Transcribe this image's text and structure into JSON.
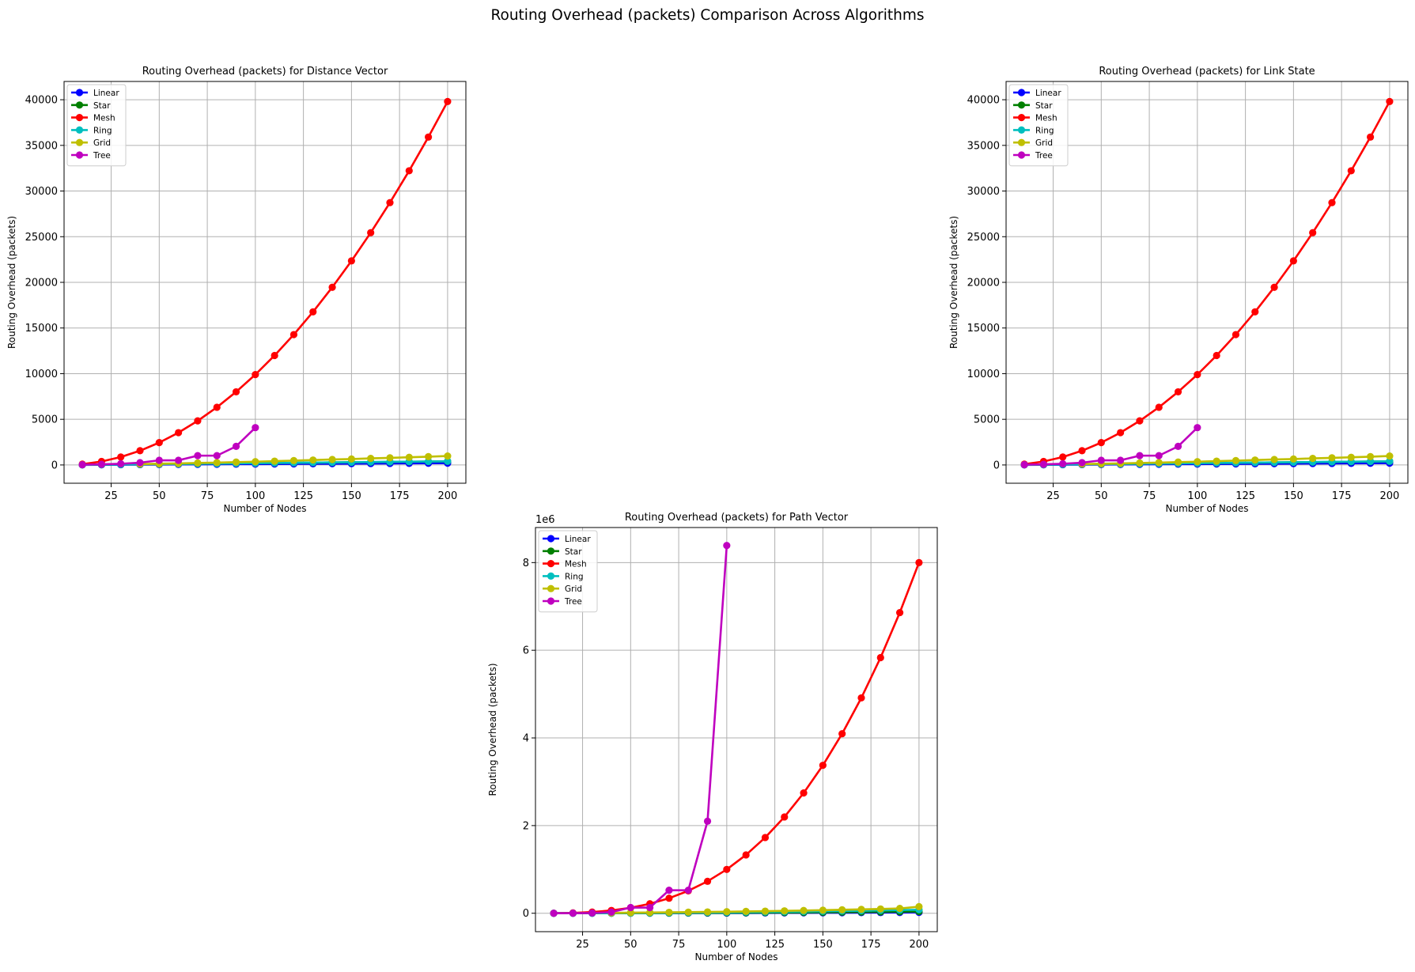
{
  "figure": {
    "suptitle": "Routing Overhead (packets) Comparison Across Algorithms"
  },
  "legend_labels": [
    "Linear",
    "Star",
    "Mesh",
    "Ring",
    "Grid",
    "Tree"
  ],
  "series_colors": {
    "Linear": "#0000ff",
    "Star": "#008000",
    "Mesh": "#ff0000",
    "Ring": "#00bfbf",
    "Grid": "#bfbf00",
    "Tree": "#bf00bf"
  },
  "chart_data": [
    {
      "type": "line",
      "title": "Routing Overhead (packets) for Distance Vector",
      "xlabel": "Number of Nodes",
      "ylabel": "Routing Overhead (packets)",
      "xlim": [
        0.5,
        209.5
      ],
      "ylim": [
        -2000,
        42000
      ],
      "xticks": [
        25,
        50,
        75,
        100,
        125,
        150,
        175,
        200
      ],
      "yticks": [
        0,
        5000,
        10000,
        15000,
        20000,
        25000,
        30000,
        35000,
        40000
      ],
      "offset_text": "",
      "grid": true,
      "legend_position": "upper left",
      "series": [
        {
          "name": "Linear",
          "x": [
            10,
            20,
            30,
            40,
            50,
            60,
            70,
            80,
            90,
            100,
            110,
            120,
            130,
            140,
            150,
            160,
            170,
            180,
            190,
            200
          ],
          "y": [
            9,
            19,
            29,
            39,
            49,
            59,
            69,
            79,
            89,
            99,
            109,
            119,
            129,
            139,
            149,
            159,
            169,
            179,
            189,
            199
          ]
        },
        {
          "name": "Star",
          "x": [
            10,
            20,
            30,
            40,
            50,
            60,
            70,
            80,
            90,
            100,
            110,
            120,
            130,
            140,
            150,
            160,
            170,
            180,
            190,
            200
          ],
          "y": [
            18,
            38,
            58,
            78,
            98,
            118,
            138,
            158,
            178,
            198,
            218,
            238,
            258,
            278,
            298,
            318,
            338,
            358,
            378,
            398
          ]
        },
        {
          "name": "Mesh",
          "x": [
            10,
            20,
            30,
            40,
            50,
            60,
            70,
            80,
            90,
            100,
            110,
            120,
            130,
            140,
            150,
            160,
            170,
            180,
            190,
            200
          ],
          "y": [
            90,
            380,
            870,
            1560,
            2450,
            3540,
            4830,
            6320,
            8010,
            9900,
            11990,
            14280,
            16770,
            19460,
            22350,
            25440,
            28730,
            32220,
            35910,
            39800
          ]
        },
        {
          "name": "Ring",
          "x": [
            10,
            20,
            30,
            40,
            50,
            60,
            70,
            80,
            90,
            100,
            110,
            120,
            130,
            140,
            150,
            160,
            170,
            180,
            190,
            200
          ],
          "y": [
            20,
            40,
            60,
            80,
            100,
            120,
            140,
            160,
            180,
            200,
            220,
            240,
            260,
            280,
            300,
            320,
            340,
            360,
            380,
            400
          ]
        },
        {
          "name": "Grid",
          "x": [
            40,
            50,
            60,
            70,
            80,
            90,
            100,
            110,
            120,
            130,
            140,
            150,
            160,
            170,
            180,
            190,
            200
          ],
          "y": [
            96,
            135,
            170,
            220,
            260,
            315,
            360,
            420,
            480,
            540,
            600,
            650,
            720,
            780,
            840,
            910,
            980
          ]
        },
        {
          "name": "Tree",
          "x": [
            10,
            20,
            30,
            40,
            50,
            60,
            70,
            80,
            90,
            100
          ],
          "y": [
            30,
            70,
            130,
            250,
            510,
            510,
            1020,
            1020,
            2040,
            4090
          ]
        }
      ]
    },
    {
      "type": "line",
      "title": "Routing Overhead (packets) for Link State",
      "xlabel": "Number of Nodes",
      "ylabel": "Routing Overhead (packets)",
      "xlim": [
        0.5,
        209.5
      ],
      "ylim": [
        -2000,
        42000
      ],
      "xticks": [
        25,
        50,
        75,
        100,
        125,
        150,
        175,
        200
      ],
      "yticks": [
        0,
        5000,
        10000,
        15000,
        20000,
        25000,
        30000,
        35000,
        40000
      ],
      "offset_text": "",
      "grid": true,
      "legend_position": "upper left",
      "series": [
        {
          "name": "Linear",
          "x": [
            10,
            20,
            30,
            40,
            50,
            60,
            70,
            80,
            90,
            100,
            110,
            120,
            130,
            140,
            150,
            160,
            170,
            180,
            190,
            200
          ],
          "y": [
            9,
            19,
            29,
            39,
            49,
            59,
            69,
            79,
            89,
            99,
            109,
            119,
            129,
            139,
            149,
            159,
            169,
            179,
            189,
            199
          ]
        },
        {
          "name": "Star",
          "x": [
            10,
            20,
            30,
            40,
            50,
            60,
            70,
            80,
            90,
            100,
            110,
            120,
            130,
            140,
            150,
            160,
            170,
            180,
            190,
            200
          ],
          "y": [
            18,
            38,
            58,
            78,
            98,
            118,
            138,
            158,
            178,
            198,
            218,
            238,
            258,
            278,
            298,
            318,
            338,
            358,
            378,
            398
          ]
        },
        {
          "name": "Mesh",
          "x": [
            10,
            20,
            30,
            40,
            50,
            60,
            70,
            80,
            90,
            100,
            110,
            120,
            130,
            140,
            150,
            160,
            170,
            180,
            190,
            200
          ],
          "y": [
            90,
            380,
            870,
            1560,
            2450,
            3540,
            4830,
            6320,
            8010,
            9900,
            11990,
            14280,
            16770,
            19460,
            22350,
            25440,
            28730,
            32220,
            35910,
            39800
          ]
        },
        {
          "name": "Ring",
          "x": [
            10,
            20,
            30,
            40,
            50,
            60,
            70,
            80,
            90,
            100,
            110,
            120,
            130,
            140,
            150,
            160,
            170,
            180,
            190,
            200
          ],
          "y": [
            20,
            40,
            60,
            80,
            100,
            120,
            140,
            160,
            180,
            200,
            220,
            240,
            260,
            280,
            300,
            320,
            340,
            360,
            380,
            400
          ]
        },
        {
          "name": "Grid",
          "x": [
            40,
            50,
            60,
            70,
            80,
            90,
            100,
            110,
            120,
            130,
            140,
            150,
            160,
            170,
            180,
            190,
            200
          ],
          "y": [
            96,
            135,
            170,
            220,
            260,
            315,
            360,
            420,
            480,
            540,
            600,
            650,
            720,
            780,
            840,
            910,
            980
          ]
        },
        {
          "name": "Tree",
          "x": [
            10,
            20,
            30,
            40,
            50,
            60,
            70,
            80,
            90,
            100
          ],
          "y": [
            30,
            70,
            130,
            250,
            510,
            510,
            1020,
            1020,
            2040,
            4090
          ]
        }
      ]
    },
    {
      "type": "line",
      "title": "Routing Overhead (packets) for Path Vector",
      "xlabel": "Number of Nodes",
      "ylabel": "Routing Overhead (packets)",
      "xlim": [
        0.5,
        209.5
      ],
      "ylim": [
        -420000,
        8800000
      ],
      "xticks": [
        25,
        50,
        75,
        100,
        125,
        150,
        175,
        200
      ],
      "yticks": [
        0,
        2000000,
        4000000,
        6000000,
        8000000
      ],
      "ytick_labels": [
        "0",
        "2",
        "4",
        "6",
        "8"
      ],
      "offset_text": "1e6",
      "grid": true,
      "legend_position": "upper left",
      "series": [
        {
          "name": "Linear",
          "x": [
            10,
            20,
            30,
            40,
            50,
            60,
            70,
            80,
            90,
            100,
            110,
            120,
            130,
            140,
            150,
            160,
            170,
            180,
            190,
            200
          ],
          "y": [
            45,
            190,
            435,
            780,
            1225,
            1770,
            2415,
            3160,
            4005,
            4950,
            5995,
            7140,
            8385,
            9730,
            11175,
            12720,
            14365,
            16110,
            17955,
            19900
          ]
        },
        {
          "name": "Star",
          "x": [
            10,
            20,
            30,
            40,
            50,
            60,
            70,
            80,
            90,
            100,
            110,
            120,
            130,
            140,
            150,
            160,
            170,
            180,
            190,
            200
          ],
          "y": [
            90,
            380,
            870,
            1560,
            2450,
            3540,
            4830,
            6320,
            8010,
            9900,
            11990,
            14280,
            16770,
            19460,
            22350,
            25440,
            28730,
            32220,
            35910,
            39800
          ]
        },
        {
          "name": "Mesh",
          "x": [
            10,
            20,
            30,
            40,
            50,
            60,
            70,
            80,
            90,
            100,
            110,
            120,
            130,
            140,
            150,
            160,
            170,
            180,
            190,
            200
          ],
          "y": [
            1000,
            8000,
            27000,
            64000,
            125000,
            216000,
            343000,
            512000,
            729000,
            1000000,
            1331000,
            1728000,
            2197000,
            2744000,
            3375000,
            4096000,
            4913000,
            5832000,
            6859000,
            8000000
          ]
        },
        {
          "name": "Ring",
          "x": [
            10,
            20,
            30,
            40,
            50,
            60,
            70,
            80,
            90,
            100,
            110,
            120,
            130,
            140,
            150,
            160,
            170,
            180,
            190,
            200
          ],
          "y": [
            200,
            800,
            1800,
            3200,
            5000,
            7200,
            9800,
            12800,
            16200,
            20000,
            24200,
            28800,
            33800,
            39200,
            45000,
            51200,
            57800,
            64800,
            72200,
            80000
          ]
        },
        {
          "name": "Grid",
          "x": [
            40,
            50,
            60,
            70,
            80,
            90,
            100,
            110,
            120,
            130,
            140,
            150,
            160,
            170,
            180,
            190,
            200
          ],
          "y": [
            8000,
            14000,
            17000,
            21000,
            25000,
            30000,
            35000,
            42000,
            48000,
            55000,
            62000,
            70000,
            79000,
            88000,
            98000,
            110000,
            150000
          ]
        },
        {
          "name": "Tree",
          "x": [
            10,
            20,
            30,
            40,
            50,
            60,
            70,
            80,
            90,
            100
          ],
          "y": [
            300,
            1400,
            6000,
            27000,
            130000,
            130000,
            525000,
            525000,
            2100000,
            8390000
          ]
        }
      ]
    }
  ]
}
